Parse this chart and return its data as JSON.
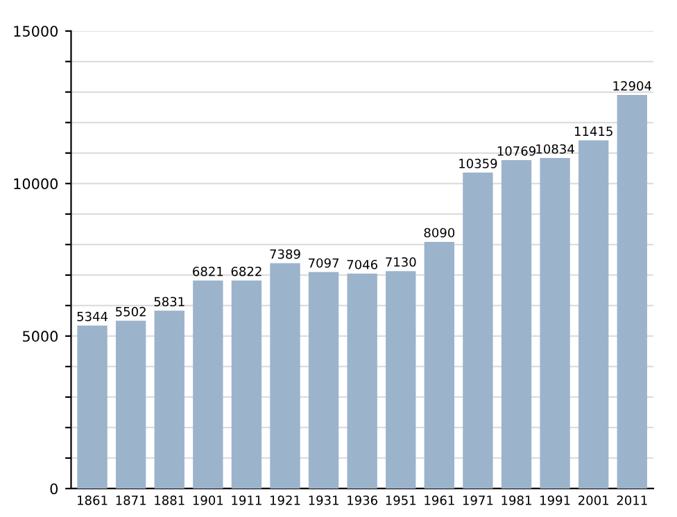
{
  "chart_data": {
    "type": "bar",
    "categories": [
      "1861",
      "1871",
      "1881",
      "1901",
      "1911",
      "1921",
      "1931",
      "1936",
      "1951",
      "1961",
      "1971",
      "1981",
      "1991",
      "2001",
      "2011"
    ],
    "values": [
      5344,
      5502,
      5831,
      6821,
      6822,
      7389,
      7097,
      7046,
      7130,
      8090,
      10359,
      10769,
      10834,
      11415,
      12904
    ],
    "color": "#9cb3cc",
    "ylim": [
      0,
      15000
    ],
    "yticks": [
      0,
      {
        "value": 1000,
        "label": null
      },
      {
        "value": 2000,
        "label": null
      },
      {
        "value": 3000,
        "label": null
      },
      {
        "value": 4000,
        "label": null
      },
      5000,
      {
        "value": 6000,
        "label": null
      },
      {
        "value": 7000,
        "label": null
      },
      {
        "value": 8000,
        "label": null
      },
      {
        "value": 9000,
        "label": null
      },
      10000,
      {
        "value": 11000,
        "label": null
      },
      {
        "value": 12000,
        "label": null
      },
      {
        "value": 13000,
        "label": null
      },
      {
        "value": 14000,
        "label": null
      },
      15000
    ],
    "grid": "y",
    "data_labels": true
  }
}
